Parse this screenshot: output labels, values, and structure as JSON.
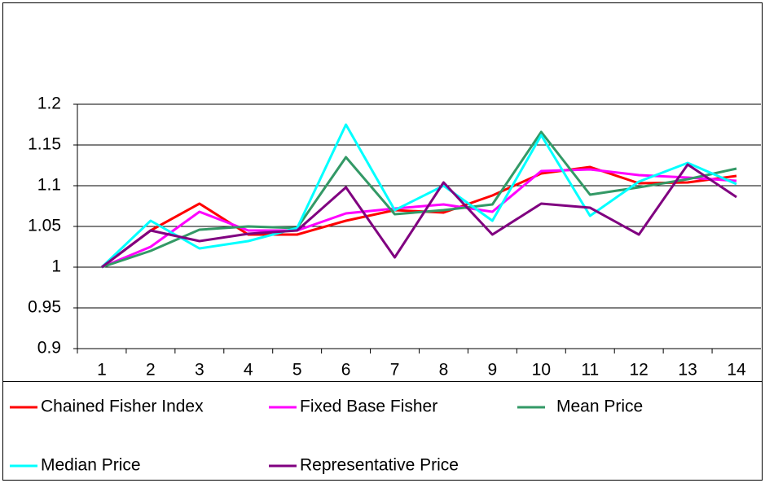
{
  "chart_data": {
    "type": "line",
    "categories": [
      "1",
      "2",
      "3",
      "4",
      "5",
      "6",
      "7",
      "8",
      "9",
      "10",
      "11",
      "12",
      "13",
      "14"
    ],
    "series": [
      {
        "name": "Chained Fisher Index",
        "color": "#ff0000",
        "values": [
          1,
          1.045,
          1.078,
          1.04,
          1.04,
          1.057,
          1.07,
          1.067,
          1.088,
          1.115,
          1.123,
          1.103,
          1.104,
          1.112
        ]
      },
      {
        "name": "Fixed Base Fisher",
        "color": "#ff00ff",
        "values": [
          1,
          1.025,
          1.068,
          1.045,
          1.045,
          1.066,
          1.072,
          1.077,
          1.068,
          1.118,
          1.12,
          1.113,
          1.11,
          1.106
        ]
      },
      {
        "name": "Mean Price",
        "color": "#339966",
        "values": [
          1,
          1.02,
          1.046,
          1.05,
          1.048,
          1.135,
          1.065,
          1.07,
          1.077,
          1.166,
          1.089,
          1.098,
          1.108,
          1.121
        ]
      },
      {
        "name": "Median Price",
        "color": "#00ffff",
        "values": [
          1,
          1.057,
          1.023,
          1.032,
          1.048,
          1.175,
          1.07,
          1.1,
          1.057,
          1.162,
          1.063,
          1.105,
          1.128,
          1.102
        ]
      },
      {
        "name": "Representative Price",
        "color": "#800080",
        "values": [
          1,
          1.045,
          1.032,
          1.041,
          1.045,
          1.098,
          1.012,
          1.104,
          1.04,
          1.078,
          1.073,
          1.04,
          1.126,
          1.086
        ]
      }
    ],
    "ylim": [
      0.9,
      1.2
    ],
    "yticks": [
      0.9,
      0.95,
      1,
      1.05,
      1.1,
      1.15,
      1.2
    ],
    "grid": true,
    "legend": "bottom"
  }
}
